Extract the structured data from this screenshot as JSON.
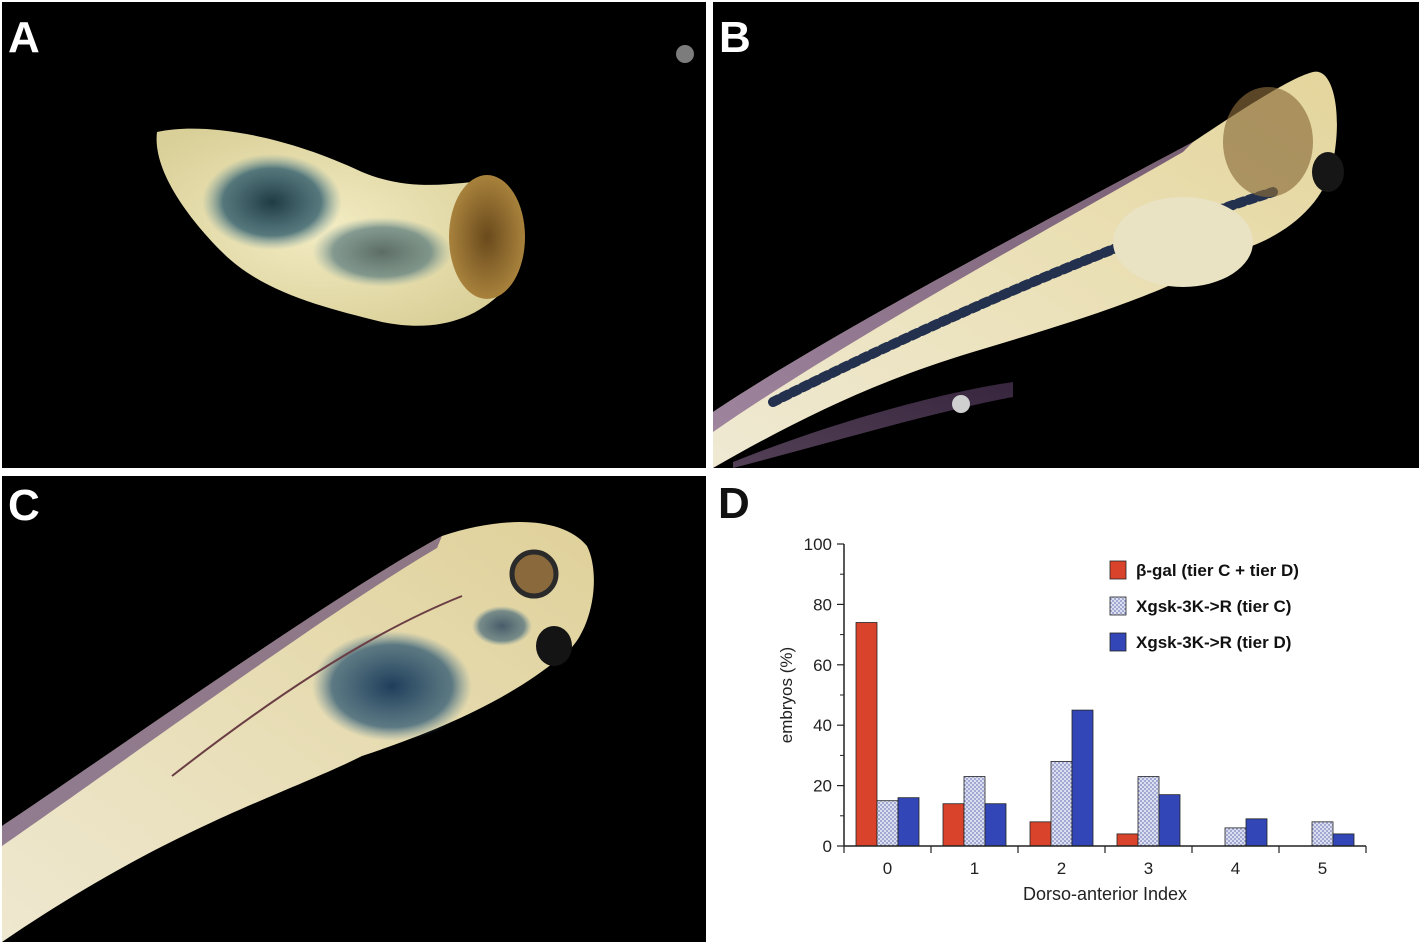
{
  "panels": {
    "a": {
      "letter": "A"
    },
    "b": {
      "letter": "B"
    },
    "c": {
      "letter": "C"
    },
    "d": {
      "letter": "D"
    }
  },
  "chart_data": {
    "type": "bar",
    "title": "",
    "xlabel": "Dorso-anterior Index",
    "ylabel": "embryos (%)",
    "categories": [
      "0",
      "1",
      "2",
      "3",
      "4",
      "5"
    ],
    "ylim": [
      0,
      100
    ],
    "yticks": [
      "0",
      "20",
      "40",
      "60",
      "80",
      "100"
    ],
    "grid": false,
    "legend_placement": "top-right",
    "series": [
      {
        "name": "β-gal (tier C + tier D)",
        "color": "#d9432c",
        "pattern": "solid",
        "values": [
          74,
          14,
          8,
          4,
          0,
          0
        ]
      },
      {
        "name": "Xgsk-3K->R (tier C)",
        "color": "#c8cbe8",
        "pattern": "dotted",
        "values": [
          15,
          23,
          28,
          23,
          6,
          8
        ]
      },
      {
        "name": "Xgsk-3K->R (tier D)",
        "color": "#3346b8",
        "pattern": "solid",
        "values": [
          16,
          14,
          45,
          17,
          9,
          4
        ]
      }
    ]
  }
}
